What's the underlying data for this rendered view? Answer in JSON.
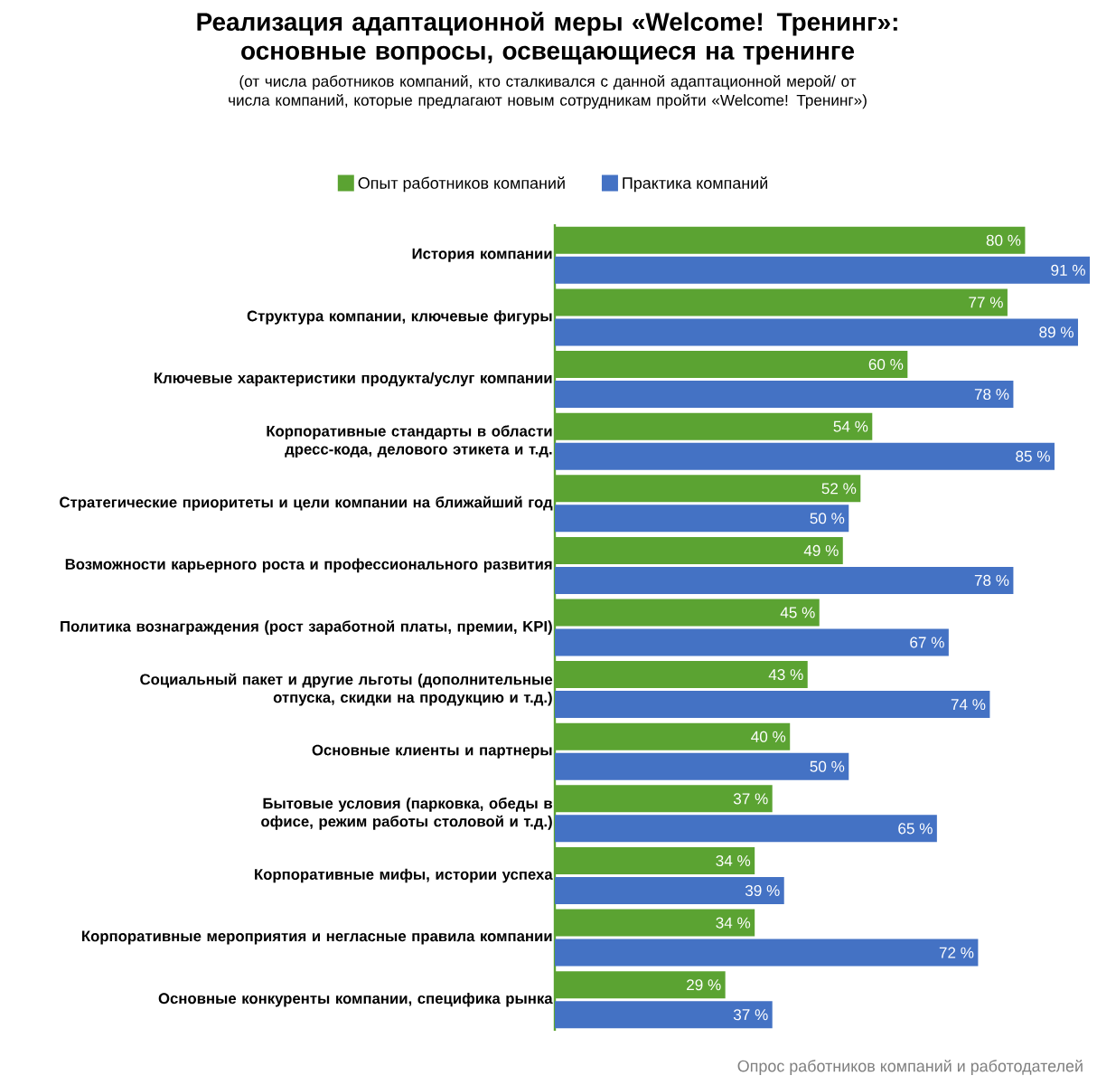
{
  "chart_data": {
    "type": "bar",
    "orientation": "horizontal",
    "title": "Реализация адаптационной меры «Welcome! Тренинг»: основные вопросы, освещающиеся на тренинге",
    "subtitle": "(от числа работников компаний, кто сталкивался с данной адаптационной мерой/ от числа компаний, которые предлагают новым сотрудникам пройти «Welcome! Тренинг»)",
    "categories": [
      "История компании",
      "Структура компании, ключевые фигуры",
      "Ключевые характеристики продукта/услуг компании",
      "Корпоративные стандарты в области дресс-кода, делового этикета и т.д.",
      "Стратегические приоритеты и цели компании на ближайший год",
      "Возможности карьерного роста и профессионального развития",
      "Политика вознаграждения (рост заработной платы, премии, KPI)",
      "Социальный пакет и другие льготы (дополнительные отпуска, скидки на продукцию и т.д.)",
      "Основные клиенты и партнеры",
      "Бытовые условия (парковка, обеды в офисе, режим работы столовой и т.д.)",
      "Корпоративные мифы, истории успеха",
      "Корпоративные мероприятия и негласные правила компании",
      "Основные конкуренты компании, специфика рынка"
    ],
    "series": [
      {
        "name": "Опыт работников компаний",
        "color": "#5ba332",
        "values": [
          80,
          77,
          60,
          54,
          52,
          49,
          45,
          43,
          40,
          37,
          34,
          34,
          29
        ],
        "value_labels": [
          "80 %",
          "77 %",
          "60 %",
          "54 %",
          "52 %",
          "49 %",
          "45 %",
          "43 %",
          "40 %",
          "37 %",
          "34 %",
          "34 %",
          "29 %"
        ]
      },
      {
        "name": "Практика компаний",
        "color": "#4472c4",
        "values": [
          91,
          89,
          78,
          85,
          50,
          78,
          67,
          74,
          50,
          65,
          39,
          72,
          37
        ],
        "value_labels": [
          "91 %",
          "89 %",
          "78 %",
          "85 %",
          "50 %",
          "78 %",
          "67 %",
          "74 %",
          "50 %",
          "65 %",
          "39 %",
          "72 %",
          "37 %"
        ]
      }
    ],
    "legend": "top",
    "grid": false,
    "tick_labels": "y",
    "annotations": [
      "Опрос работников компаний и работодателей"
    ]
  }
}
